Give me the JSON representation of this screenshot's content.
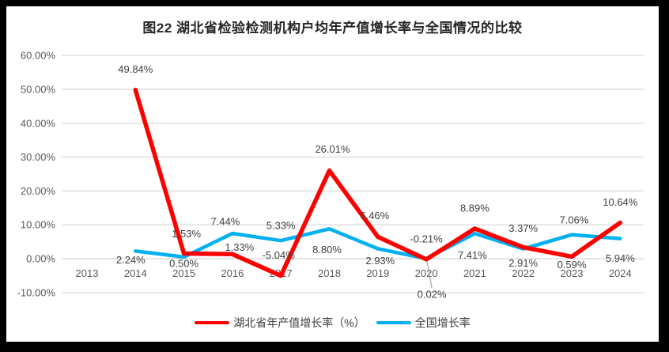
{
  "title": "图22 湖北省检验检测机构户均年产值增长率与全国情况的比较",
  "colors": {
    "hubei": "#FF0000",
    "national": "#00B0F0",
    "grid": "#DCDCDC",
    "axis_text": "#595959",
    "label_text": "#404040",
    "leader": "#A6A6A6",
    "frame": "#000000",
    "panel": "#FFFFFF"
  },
  "chart_data": {
    "type": "line",
    "title": "图22 湖北省检验检测机构户均年产值增长率与全国情况的比较",
    "categories": [
      "2013",
      "2014",
      "2015",
      "2016",
      "2017",
      "2018",
      "2019",
      "2020",
      "2021",
      "2022",
      "2023",
      "2024"
    ],
    "ylim": [
      -10,
      60
    ],
    "grid": true,
    "legend_position": "bottom",
    "yticks": [
      {
        "value": 60,
        "label": "60.00%"
      },
      {
        "value": 50,
        "label": "50.00%"
      },
      {
        "value": 40,
        "label": "40.00%"
      },
      {
        "value": 30,
        "label": "30.00%"
      },
      {
        "value": 20,
        "label": "20.00%"
      },
      {
        "value": 10,
        "label": "10.00%"
      },
      {
        "value": 0,
        "label": "0.00%"
      },
      {
        "value": -10,
        "label": "-10.00%"
      }
    ],
    "series": [
      {
        "name": "湖北省年产值增长率（%）",
        "color": "#FF0000",
        "values": [
          null,
          49.84,
          1.53,
          1.33,
          -5.04,
          26.01,
          6.46,
          -0.21,
          8.89,
          3.37,
          0.59,
          10.64
        ],
        "labels": [
          null,
          "49.84%",
          "1.53%",
          "1.33%",
          "-5.04%",
          "26.01%",
          "6.46%",
          "-0.21%",
          "8.89%",
          "3.37%",
          "0.59%",
          "10.64%"
        ],
        "label_offsets": [
          null,
          {
            "dy": -26
          },
          {
            "dx": 3,
            "dy": -25
          },
          {
            "dx": 9,
            "dy": -9
          },
          {
            "dx": -3,
            "dy": -26
          },
          {
            "dx": 4,
            "dy": -27
          },
          {
            "dx": -4,
            "dy": -27
          },
          {
            "dy": -26
          },
          {
            "dy": -26
          },
          {
            "dy": -24
          },
          {
            "dy": 10
          },
          {
            "dy": -26
          }
        ]
      },
      {
        "name": "全国增长率",
        "color": "#00B0F0",
        "values": [
          null,
          2.24,
          0.5,
          7.44,
          5.33,
          8.8,
          2.93,
          0.02,
          7.41,
          2.91,
          7.06,
          5.94
        ],
        "labels": [
          null,
          "2.24%",
          "0.50%",
          "7.44%",
          "5.33%",
          "8.80%",
          "2.93%",
          "0.02%",
          "7.41%",
          "2.91%",
          "7.06%",
          "5.94%"
        ],
        "label_offsets": [
          null,
          {
            "dx": -6,
            "dy": 11
          },
          {
            "dy": 8
          },
          {
            "dx": -9,
            "dy": -15
          },
          {
            "dy": -19
          },
          {
            "dx": -3,
            "dy": 26
          },
          {
            "dx": 3,
            "dy": 15
          },
          {
            "dx": 7,
            "dy": 45,
            "leader": true
          },
          {
            "dx": -3,
            "dy": 27
          },
          {
            "dy": 18
          },
          {
            "dx": 3,
            "dy": -19
          },
          {
            "dy": 25
          }
        ]
      }
    ]
  },
  "legend": {
    "items": [
      {
        "label": "湖北省年产值增长率（%）"
      },
      {
        "label": "全国增长率"
      }
    ]
  }
}
